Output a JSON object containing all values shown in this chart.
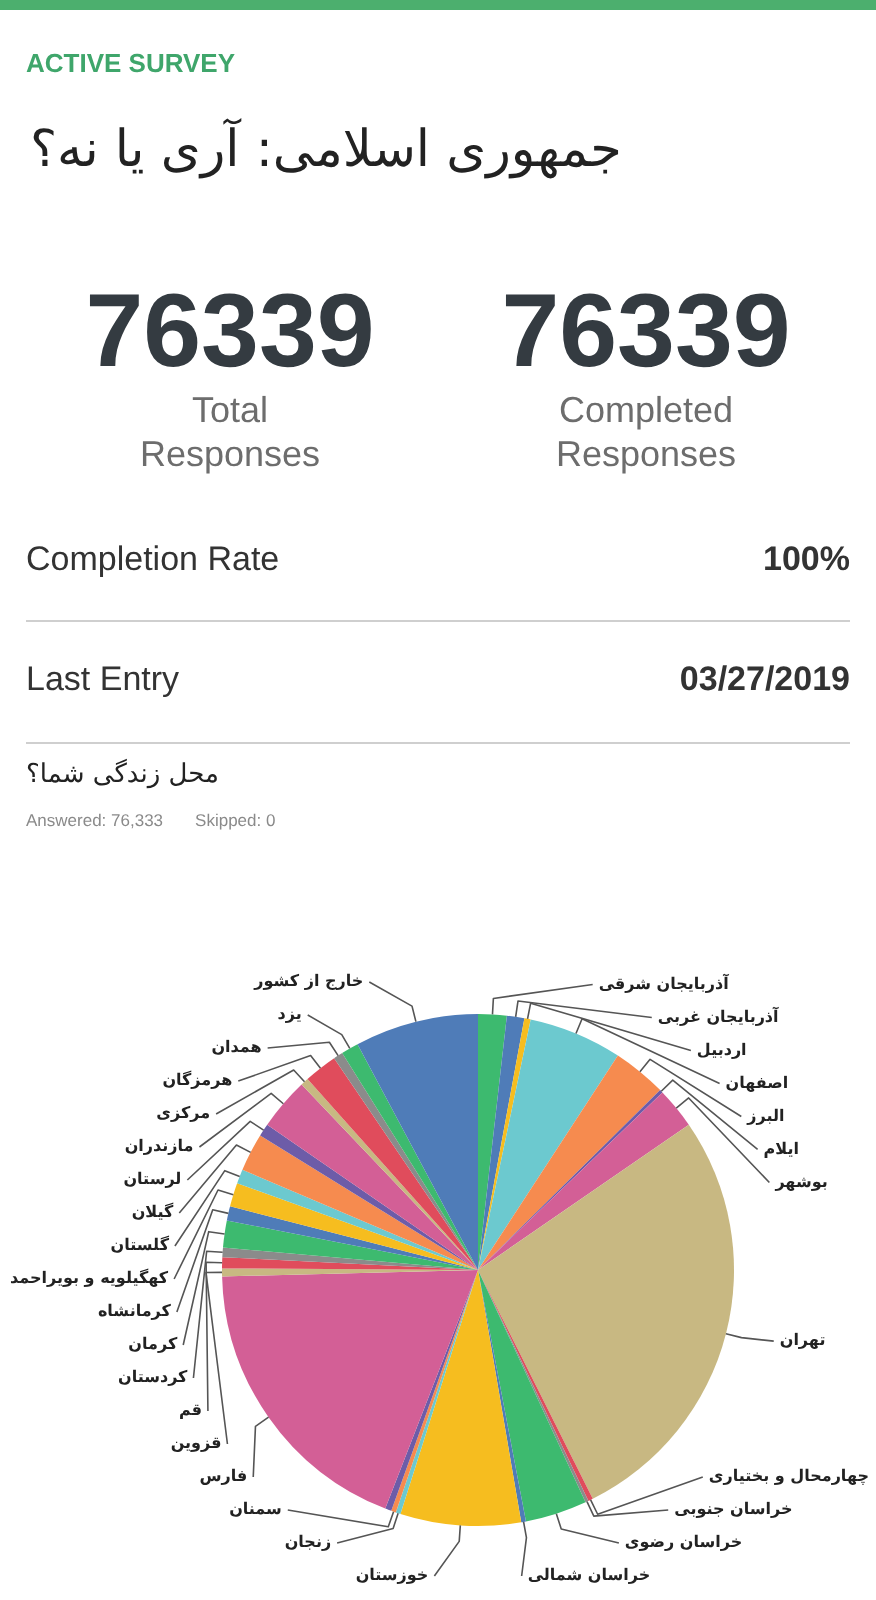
{
  "chart_data": [
    {
      "type": "other",
      "title": "جمهوری اسلامی: آری یا نه؟",
      "annotations": [
        "ACTIVE SURVEY",
        "76339",
        "Total Responses",
        "76339",
        "Completed Responses",
        "Completion Rate",
        "100%",
        "Last Entry",
        "03/27/2019"
      ]
    },
    {
      "type": "pie",
      "title": "محل زندگی شما؟",
      "annotations": [
        "Answered: 76,333",
        "Skipped: 0"
      ],
      "categories": [
        "آذربایجان شرقی",
        "آذربایجان غربی",
        "اردبیل",
        "اصفهان",
        "البرز",
        "ایلام",
        "بوشهر",
        "تهران",
        "چهارمحال و بختیاری",
        "خراسان جنوبی",
        "خراسان رضوی",
        "خراسان شمالی",
        "خوزستان",
        "زنجان",
        "سمنان",
        null,
        "فارس",
        "قزوین",
        "قم",
        "کردستان",
        "کرمان",
        "کرمانشاه",
        "کهگیلویه و بویراحمد",
        "گلستان",
        "گیلان",
        "لرستان",
        "مازندران",
        "مرکزی",
        "هرمزگان",
        "همدان",
        "یزد",
        "خارج از کشور"
      ],
      "values": [
        1.8,
        1.1,
        0.4,
        5.9,
        3.4,
        0.2,
        2.6,
        27.2,
        0.3,
        0.2,
        3.9,
        0.3,
        7.6,
        0.3,
        0.3,
        0.4,
        18.7,
        0.5,
        0.7,
        0.6,
        1.7,
        0.9,
        1.5,
        0.9,
        2.4,
        0.8,
        3.3,
        0.5,
        2.1,
        0.6,
        1.1,
        7.8
      ],
      "colors": [
        "#3dba6f",
        "#4f7cb8",
        "#f6bd1f",
        "#6cc9cf",
        "#f68b4f",
        "#6d5ca8",
        "#d35f96",
        "#c8b882",
        "#e04c5c",
        "#8b8b8b",
        "#3dba6f",
        "#4f7cb8",
        "#f6bd1f",
        "#6cc9cf",
        "#f68b4f",
        "#6d5ca8",
        "#d35f96",
        "#c8b882",
        "#e04c5c",
        "#8b8b8b",
        "#3dba6f",
        "#4f7cb8",
        "#f6bd1f",
        "#6cc9cf",
        "#f68b4f",
        "#6d5ca8",
        "#d35f96",
        "#c8b882",
        "#e04c5c",
        "#8b8b8b",
        "#3dba6f",
        "#4f7cb8"
      ]
    }
  ]
}
